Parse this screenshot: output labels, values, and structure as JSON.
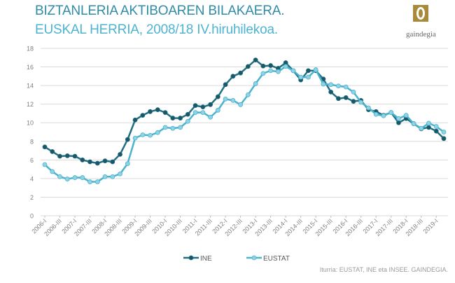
{
  "title": "BIZTANLERIA AKTIBOAREN BILAKAERA.",
  "subtitle": "EUSKAL HERRIA, 2008/18 IV.hiruhilekoa.",
  "logo": {
    "text": "gaindegia",
    "colors": [
      "#a9893a",
      "#6b6b6b"
    ]
  },
  "source": "Iturria: EUSTAT, INE eta INSEE. GAINDEGIA.",
  "chart_data": {
    "type": "line",
    "title": "",
    "xlabel": "",
    "ylabel": "",
    "ylim": [
      0,
      18
    ],
    "yticks": [
      0,
      2,
      4,
      6,
      8,
      10,
      12,
      14,
      16,
      18
    ],
    "grid": true,
    "legend": "bottom",
    "x": [
      "2006-I",
      "2006-II",
      "2006-III",
      "2006-IV",
      "2007-I",
      "2007-II",
      "2007-III",
      "2007-IV",
      "2008-I",
      "2008-II",
      "2008-III",
      "2008-IV",
      "2009-I",
      "2009-II",
      "2009-III",
      "2009-IV",
      "2010-I",
      "2010-II",
      "2010-III",
      "2010-IV",
      "2011-I",
      "2011-II",
      "2011-III",
      "2011-IV",
      "2012-I",
      "2012-II",
      "2012-III",
      "2012-IV",
      "2013-I",
      "2013-II",
      "2013-III",
      "2013-IV",
      "2014-I",
      "2014-II",
      "2014-III",
      "2014-IV",
      "2015-I",
      "2015-II",
      "2015-III",
      "2015-IV",
      "2016-I",
      "2016-II",
      "2016-III",
      "2016-IV",
      "2017-I",
      "2017-II",
      "2017-III",
      "2017-IV",
      "2018-I",
      "2018-II",
      "2018-III",
      "2018-IV",
      "2019-I",
      "2019-II"
    ],
    "tick_labels": [
      "2006-I",
      "2006-III",
      "2007-I",
      "2007-III",
      "2008-I",
      "2008-III",
      "2009-I",
      "2009-III",
      "2010-I",
      "2010-III",
      "2011-I",
      "2011-III",
      "2012-I",
      "2012-III",
      "2013-I",
      "2013-III",
      "2014-I",
      "2014-III",
      "2015-I",
      "2015-III",
      "2016-I",
      "2016-III",
      "2017-I",
      "2017-III",
      "2018-I",
      "2018-III",
      "2019-I"
    ],
    "series": [
      {
        "name": "INE",
        "color": "#226f82",
        "marker_color": "#1b5667",
        "values": [
          7.4,
          6.9,
          6.4,
          6.45,
          6.4,
          6.0,
          5.8,
          5.65,
          5.9,
          5.8,
          6.6,
          8.2,
          10.3,
          10.8,
          11.2,
          11.4,
          11.1,
          10.5,
          10.5,
          10.9,
          11.85,
          11.7,
          11.95,
          12.8,
          14.1,
          15.0,
          15.35,
          16.05,
          16.75,
          16.1,
          16.15,
          15.85,
          16.45,
          15.6,
          14.6,
          15.6,
          15.6,
          14.7,
          13.3,
          12.6,
          12.7,
          12.3,
          12.4,
          11.4,
          11.2,
          10.8,
          11.1,
          10.0,
          10.45,
          9.9,
          9.35,
          9.5,
          9.1,
          8.3
        ]
      },
      {
        "name": "EUSTAT",
        "color": "#4ab3cf",
        "marker_color": "#8fd2e3",
        "values": [
          5.5,
          4.75,
          4.2,
          3.95,
          4.1,
          4.1,
          3.65,
          3.65,
          4.2,
          4.2,
          4.5,
          5.6,
          8.35,
          8.7,
          8.65,
          8.95,
          9.5,
          9.4,
          9.5,
          10.15,
          11.1,
          11.1,
          10.6,
          11.35,
          12.55,
          12.4,
          11.95,
          13.0,
          14.2,
          15.3,
          15.6,
          15.5,
          16.05,
          15.6,
          14.9,
          14.9,
          15.7,
          14.15,
          14.1,
          13.95,
          13.85,
          13.3,
          12.2,
          11.6,
          10.9,
          10.75,
          11.1,
          10.45,
          10.8,
          9.9,
          9.4,
          9.95,
          9.6,
          9.0
        ]
      }
    ]
  }
}
